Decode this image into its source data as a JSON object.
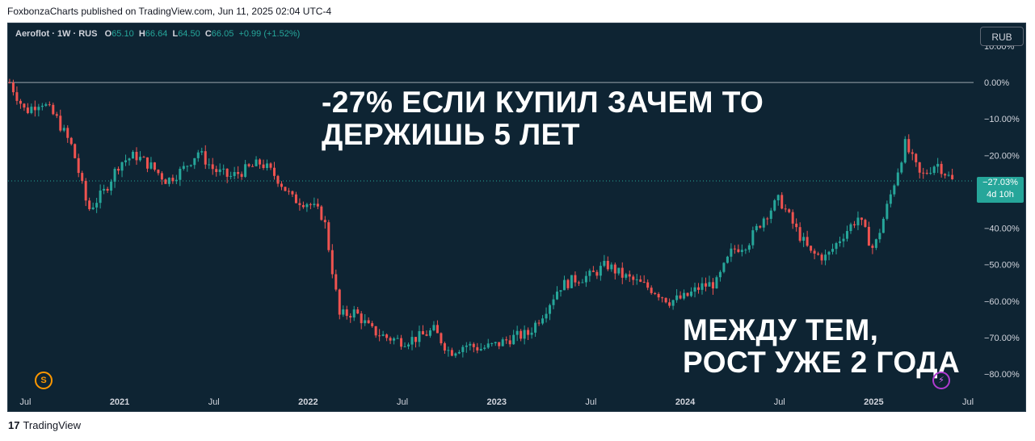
{
  "publisher_line": "FoxbonzaCharts published on TradingView.com, Jun 11, 2025 02:04 UTC-4",
  "legend": {
    "symbol": "Aeroflot · 1W · RUS",
    "o_label": "O",
    "o_value": "65.10",
    "h_label": "H",
    "h_value": "66.64",
    "l_label": "L",
    "l_value": "64.50",
    "c_label": "C",
    "c_value": "66.05",
    "change": "+0.99 (+1.52%)"
  },
  "currency_button": "RUB",
  "price_tag": {
    "value": "−27.03%",
    "countdown": "4d 10h"
  },
  "annotations": {
    "top_line1": "-27% ЕСЛИ КУПИЛ ЗАЧЕМ ТО",
    "top_line2": "ДЕРЖИШЬ 5 ЛЕТ",
    "bottom_line1": "МЕЖДУ ТЕМ,",
    "bottom_line2": "РОСТ УЖЕ 2 ГОДА"
  },
  "badges": {
    "s": "S",
    "bolt": "⚡"
  },
  "footer": {
    "logo": "17",
    "brand": "TradingView"
  },
  "colors": {
    "up": "#26a69a",
    "down": "#ef5350",
    "background": "#0e2433",
    "text": "#d1d4dc"
  },
  "chart_data": {
    "type": "candlestick",
    "y_unit": "percent change",
    "y_ticks": [
      "10.00%",
      "0.00%",
      "−10.00%",
      "−20.00%",
      "−30.00%",
      "−40.00%",
      "−50.00%",
      "−60.00%",
      "−70.00%",
      "−80.00%"
    ],
    "y_tick_values": [
      10,
      0,
      -10,
      -20,
      -30,
      -40,
      -50,
      -60,
      -70,
      -80
    ],
    "ylim": [
      -84,
      14
    ],
    "x_ticks": [
      "Jul",
      "2021",
      "Jul",
      "2022",
      "Jul",
      "2023",
      "Jul",
      "2024",
      "Jul",
      "2025",
      "Jul"
    ],
    "x_tick_dates": [
      "2020-07",
      "2021-01",
      "2021-07",
      "2022-01",
      "2022-07",
      "2023-01",
      "2023-07",
      "2024-01",
      "2024-07",
      "2025-01",
      "2025-07"
    ],
    "baseline": 0,
    "last_value": -27.03,
    "series": [
      {
        "date": "2020-06",
        "value": 0
      },
      {
        "date": "2020-07",
        "value": -8
      },
      {
        "date": "2020-08",
        "value": -5
      },
      {
        "date": "2020-09",
        "value": -10
      },
      {
        "date": "2020-10",
        "value": -18
      },
      {
        "date": "2020-11",
        "value": -35
      },
      {
        "date": "2020-12",
        "value": -30
      },
      {
        "date": "2021-01",
        "value": -22
      },
      {
        "date": "2021-02",
        "value": -20
      },
      {
        "date": "2021-03",
        "value": -23
      },
      {
        "date": "2021-04",
        "value": -27
      },
      {
        "date": "2021-05",
        "value": -24
      },
      {
        "date": "2021-06",
        "value": -19
      },
      {
        "date": "2021-07",
        "value": -24
      },
      {
        "date": "2021-08",
        "value": -26
      },
      {
        "date": "2021-09",
        "value": -24
      },
      {
        "date": "2021-10",
        "value": -22
      },
      {
        "date": "2021-11",
        "value": -26
      },
      {
        "date": "2021-12",
        "value": -32
      },
      {
        "date": "2022-01",
        "value": -33
      },
      {
        "date": "2022-02",
        "value": -37
      },
      {
        "date": "2022-03",
        "value": -64
      },
      {
        "date": "2022-04",
        "value": -63
      },
      {
        "date": "2022-05",
        "value": -68
      },
      {
        "date": "2022-06",
        "value": -70
      },
      {
        "date": "2022-07",
        "value": -71
      },
      {
        "date": "2022-08",
        "value": -70
      },
      {
        "date": "2022-09",
        "value": -68
      },
      {
        "date": "2022-10",
        "value": -74
      },
      {
        "date": "2022-11",
        "value": -72
      },
      {
        "date": "2022-12",
        "value": -73
      },
      {
        "date": "2023-01",
        "value": -72
      },
      {
        "date": "2023-02",
        "value": -70
      },
      {
        "date": "2023-03",
        "value": -69
      },
      {
        "date": "2023-04",
        "value": -63
      },
      {
        "date": "2023-05",
        "value": -56
      },
      {
        "date": "2023-06",
        "value": -54
      },
      {
        "date": "2023-07",
        "value": -53
      },
      {
        "date": "2023-08",
        "value": -50
      },
      {
        "date": "2023-09",
        "value": -53
      },
      {
        "date": "2023-10",
        "value": -55
      },
      {
        "date": "2023-11",
        "value": -57
      },
      {
        "date": "2023-12",
        "value": -60
      },
      {
        "date": "2024-01",
        "value": -59
      },
      {
        "date": "2024-02",
        "value": -56
      },
      {
        "date": "2024-03",
        "value": -55
      },
      {
        "date": "2024-04",
        "value": -46
      },
      {
        "date": "2024-05",
        "value": -44
      },
      {
        "date": "2024-06",
        "value": -37
      },
      {
        "date": "2024-07",
        "value": -32
      },
      {
        "date": "2024-08",
        "value": -40
      },
      {
        "date": "2024-09",
        "value": -47
      },
      {
        "date": "2024-10",
        "value": -48
      },
      {
        "date": "2024-11",
        "value": -42
      },
      {
        "date": "2024-12",
        "value": -37
      },
      {
        "date": "2025-01",
        "value": -46
      },
      {
        "date": "2025-02",
        "value": -32
      },
      {
        "date": "2025-03",
        "value": -17
      },
      {
        "date": "2025-04",
        "value": -26
      },
      {
        "date": "2025-05",
        "value": -22
      },
      {
        "date": "2025-06",
        "value": -27.03
      }
    ]
  }
}
